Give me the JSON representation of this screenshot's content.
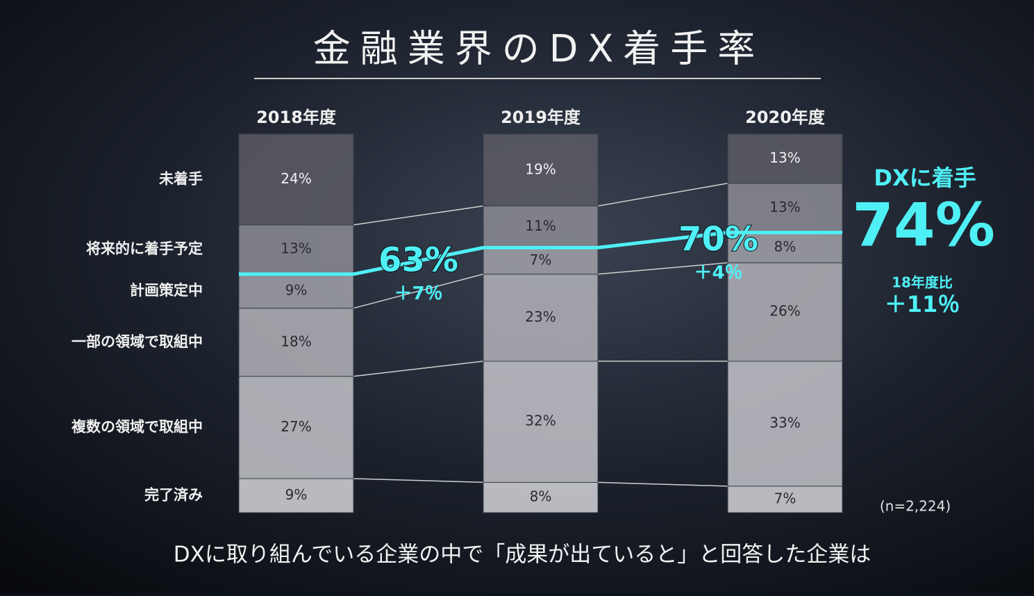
{
  "chart_data": {
    "type": "bar",
    "stacked": true,
    "title": "金融業界のDX着手率",
    "subtitle": "DXに取り組んでいる企業の中で「成果が出ていると」と回答した企業は",
    "note": "(n=2,224)",
    "categories": [
      "2018年度",
      "2019年度",
      "2020年度"
    ],
    "ylim": [
      0,
      100
    ],
    "series": [
      {
        "name": "完了済み",
        "color": "#d6d6da",
        "values": [
          9,
          8,
          7
        ],
        "value_labels": [
          "9%",
          "8%",
          "7%"
        ]
      },
      {
        "name": "複数の領域で取組中",
        "color": "#c6c6cb",
        "values": [
          27,
          32,
          33
        ],
        "value_labels": [
          "27%",
          "32%",
          "33%"
        ]
      },
      {
        "name": "一部の領域で取組中",
        "color": "#b4b4ba",
        "values": [
          18,
          23,
          26
        ],
        "value_labels": [
          "18%",
          "23%",
          "26%"
        ]
      },
      {
        "name": "計画策定中",
        "color": "#a2a2a9",
        "values": [
          9,
          7,
          8
        ],
        "value_labels": [
          "9%",
          "7%",
          "8%"
        ]
      },
      {
        "name": "将来的に着手予定",
        "color": "#8c8c94",
        "values": [
          13,
          11,
          13
        ],
        "value_labels": [
          "13%",
          "11%",
          "13%"
        ]
      },
      {
        "name": "未着手",
        "color": "#5c5c64",
        "values": [
          24,
          19,
          13
        ],
        "value_labels": [
          "24%",
          "19%",
          "13%"
        ]
      }
    ],
    "dx_line": {
      "name": "DXに着手",
      "color": "#4ff0f5",
      "values": [
        63,
        70,
        74
      ],
      "value_labels": [
        "63%",
        "70%",
        "74%"
      ]
    },
    "annotations": [
      "＋7％",
      "＋4％"
    ],
    "comparison": {
      "label": "18年度比",
      "value_label": "＋11％"
    }
  }
}
